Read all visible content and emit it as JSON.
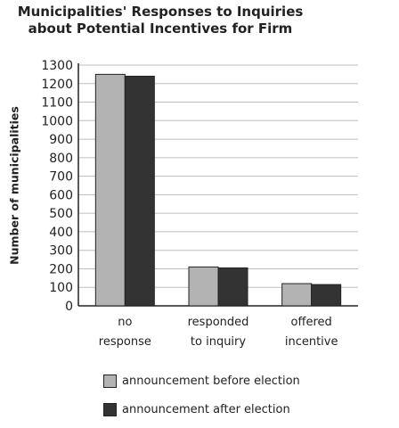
{
  "chart_data": {
    "type": "bar",
    "title": [
      "Municipalities' Responses to Inquiries",
      "about Potential Incentives for Firm"
    ],
    "ylabel": "Number of municipalities",
    "xlabel": "",
    "ylim": [
      0,
      1300
    ],
    "yticks": [
      0,
      100,
      200,
      300,
      400,
      500,
      600,
      700,
      800,
      900,
      1000,
      1100,
      1200,
      1300
    ],
    "categories": [
      [
        "no",
        "response"
      ],
      [
        "responded",
        "to inquiry"
      ],
      [
        "offered",
        "incentive"
      ]
    ],
    "series": [
      {
        "name": "announcement before election",
        "color": "#b3b3b3",
        "values": [
          1250,
          210,
          120
        ]
      },
      {
        "name": "announcement after election",
        "color": "#333333",
        "values": [
          1240,
          205,
          115
        ]
      }
    ],
    "grid": true,
    "legend_position": "bottom-left"
  }
}
